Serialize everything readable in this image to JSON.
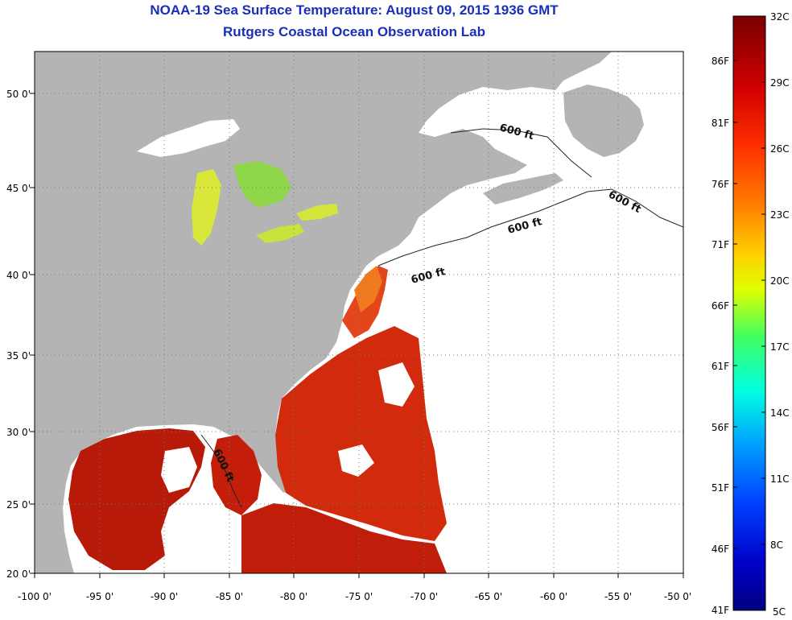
{
  "title": {
    "line1": "NOAA-19 Sea Surface Temperature:  August 09, 2015 1936 GMT",
    "line2": "Rutgers Coastal Ocean Observation Lab"
  },
  "map": {
    "lon_labels": [
      "-100 0'",
      "-95 0'",
      "-90 0'",
      "-85 0'",
      "-80 0'",
      "-75 0'",
      "-70 0'",
      "-65 0'",
      "-60 0'",
      "-55 0'",
      "-50 0'"
    ],
    "lat_labels": [
      "50 0'",
      "45 0'",
      "40 0'",
      "35 0'",
      "30 0'",
      "25 0'",
      "20 0'"
    ],
    "contour_label": "600 ft",
    "colors": {
      "land": "#b4b4b4",
      "no_data": "#ffffff",
      "grid": "#777777"
    }
  },
  "colorbar": {
    "celsius_labels": [
      "32C",
      "29C",
      "26C",
      "23C",
      "20C",
      "17C",
      "14C",
      "11C",
      "8C",
      "5C"
    ],
    "fahrenheit_labels": [
      "86F",
      "81F",
      "76F",
      "71F",
      "66F",
      "61F",
      "56F",
      "51F",
      "46F",
      "41F"
    ],
    "stops": [
      "#7a0000",
      "#c80000",
      "#ff2000",
      "#ff7a00",
      "#ffd000",
      "#c8ff00",
      "#40ff60",
      "#00ffd8",
      "#00a8ff",
      "#0040ff",
      "#0000c8",
      "#000080"
    ]
  }
}
